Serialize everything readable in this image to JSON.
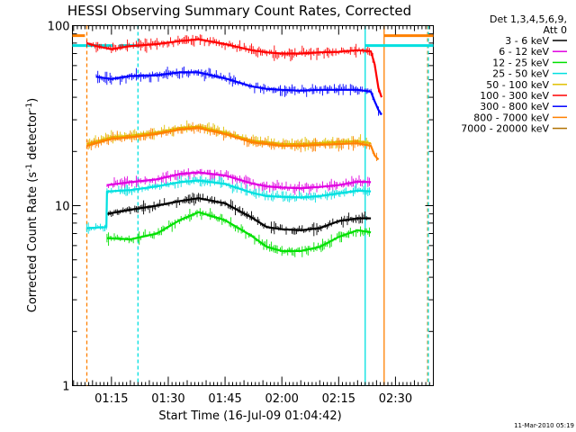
{
  "chart_data": {
    "type": "line",
    "title": "HESSI Observing Summary Count Rates, Corrected",
    "xlabel": "Start Time (16-Jul-09 01:04:42)",
    "ylabel_parts": [
      "Corrected Count Rate (s",
      "-1",
      " detector",
      "-1",
      ")"
    ],
    "y_scale": "log",
    "ylim": [
      1,
      100
    ],
    "y_ticks": [
      {
        "v": 1,
        "label": "1"
      },
      {
        "v": 10,
        "label": "10"
      },
      {
        "v": 100,
        "label": "100"
      }
    ],
    "xlim": [
      "01:04:42",
      "02:40:00"
    ],
    "x_ticks": [
      "01:15",
      "01:30",
      "01:45",
      "02:00",
      "02:15",
      "02:30"
    ],
    "legend_header": [
      "Det 1,3,4,5,6,9,",
      "Att 0"
    ],
    "legend_position": "right",
    "series": [
      {
        "name": "3 - 6 keV",
        "color": "#000000",
        "data": [
          [
            "01:13:50",
            9.0
          ],
          [
            "01:20",
            9.5
          ],
          [
            "01:27",
            10.0
          ],
          [
            "01:33",
            10.6
          ],
          [
            "01:38",
            11.0
          ],
          [
            "01:45",
            10.3
          ],
          [
            "01:52",
            8.6
          ],
          [
            "01:56",
            7.6
          ],
          [
            "02:00",
            7.4
          ],
          [
            "02:05",
            7.3
          ],
          [
            "02:10",
            7.5
          ],
          [
            "02:15",
            8.2
          ],
          [
            "02:20",
            8.5
          ],
          [
            "02:23:30",
            8.5
          ]
        ]
      },
      {
        "name": "6 - 12 keV",
        "color": "#e000e0",
        "data": [
          [
            "01:13:50",
            13.0
          ],
          [
            "01:20",
            13.5
          ],
          [
            "01:27",
            14.0
          ],
          [
            "01:33",
            15.0
          ],
          [
            "01:38",
            15.3
          ],
          [
            "01:45",
            14.7
          ],
          [
            "01:52",
            13.3
          ],
          [
            "01:56",
            12.8
          ],
          [
            "02:00",
            12.6
          ],
          [
            "02:05",
            12.5
          ],
          [
            "02:10",
            12.7
          ],
          [
            "02:15",
            13.0
          ],
          [
            "02:20",
            13.6
          ],
          [
            "02:23:30",
            13.5
          ]
        ]
      },
      {
        "name": "12 - 25 keV",
        "color": "#00e000",
        "data": [
          [
            "01:13:50",
            6.6
          ],
          [
            "01:20",
            6.5
          ],
          [
            "01:27",
            7.0
          ],
          [
            "01:33",
            8.3
          ],
          [
            "01:38",
            9.2
          ],
          [
            "01:45",
            8.3
          ],
          [
            "01:52",
            6.8
          ],
          [
            "01:56",
            5.9
          ],
          [
            "02:00",
            5.6
          ],
          [
            "02:05",
            5.6
          ],
          [
            "02:10",
            5.9
          ],
          [
            "02:15",
            6.7
          ],
          [
            "02:20",
            7.3
          ],
          [
            "02:23:30",
            7.1
          ]
        ]
      },
      {
        "name": "25 - 50 keV",
        "color": "#00e0e0",
        "data": [
          [
            "01:08:30",
            7.5
          ],
          [
            "01:13:40",
            7.6
          ],
          [
            "01:13:50",
            12.0
          ],
          [
            "01:20",
            12.2
          ],
          [
            "01:27",
            12.8
          ],
          [
            "01:33",
            13.5
          ],
          [
            "01:38",
            13.8
          ],
          [
            "01:45",
            13.2
          ],
          [
            "01:52",
            11.8
          ],
          [
            "01:56",
            11.3
          ],
          [
            "02:00",
            11.2
          ],
          [
            "02:05",
            11.1
          ],
          [
            "02:10",
            11.3
          ],
          [
            "02:15",
            11.7
          ],
          [
            "02:20",
            12.1
          ],
          [
            "02:23:30",
            12.0
          ]
        ]
      },
      {
        "name": "50 - 100 keV",
        "color": "#e0c000",
        "data": [
          [
            "01:08:30",
            22.0
          ],
          [
            "01:15",
            24.0
          ],
          [
            "01:20",
            24.5
          ],
          [
            "01:27",
            25.5
          ],
          [
            "01:33",
            27.0
          ],
          [
            "01:38",
            27.5
          ],
          [
            "01:45",
            25.5
          ],
          [
            "01:52",
            23.0
          ],
          [
            "01:56",
            22.5
          ],
          [
            "02:00",
            22.0
          ],
          [
            "02:05",
            22.0
          ],
          [
            "02:10",
            22.3
          ],
          [
            "02:15",
            22.6
          ],
          [
            "02:20",
            22.8
          ],
          [
            "02:23:30",
            22.2
          ]
        ]
      },
      {
        "name": "100 - 300 keV",
        "color": "#ff0000",
        "data": [
          [
            "01:08:30",
            80.0
          ],
          [
            "01:11",
            77.0
          ],
          [
            "01:15",
            74.0
          ],
          [
            "01:20",
            77.0
          ],
          [
            "01:27",
            79.0
          ],
          [
            "01:33",
            82.0
          ],
          [
            "01:38",
            84.0
          ],
          [
            "01:45",
            79.0
          ],
          [
            "01:52",
            73.0
          ],
          [
            "01:56",
            71.0
          ],
          [
            "02:00",
            70.0
          ],
          [
            "02:05",
            70.0
          ],
          [
            "02:10",
            71.0
          ],
          [
            "02:15",
            71.5
          ],
          [
            "02:20",
            73.0
          ],
          [
            "02:23:30",
            72.0
          ],
          [
            "02:24:30",
            61.0
          ],
          [
            "02:25:30",
            45.0
          ],
          [
            "02:26:20",
            40.0
          ]
        ]
      },
      {
        "name": "300 - 800 keV",
        "color": "#0000ff",
        "data": [
          [
            "01:11",
            52.0
          ],
          [
            "01:15",
            50.5
          ],
          [
            "01:20",
            52.5
          ],
          [
            "01:27",
            53.0
          ],
          [
            "01:33",
            55.0
          ],
          [
            "01:38",
            55.0
          ],
          [
            "01:45",
            51.0
          ],
          [
            "01:52",
            46.0
          ],
          [
            "01:56",
            44.5
          ],
          [
            "02:00",
            44.0
          ],
          [
            "02:05",
            43.5
          ],
          [
            "02:10",
            44.0
          ],
          [
            "02:15",
            44.0
          ],
          [
            "02:20",
            44.0
          ],
          [
            "02:23:30",
            43.0
          ],
          [
            "02:24:30",
            38.0
          ],
          [
            "02:25:30",
            34.0
          ],
          [
            "02:26:20",
            32.0
          ]
        ]
      },
      {
        "name": "800 - 7000 keV",
        "color": "#ff8000",
        "data": [
          [
            "01:08:30",
            21.5
          ],
          [
            "01:15",
            23.5
          ],
          [
            "01:20",
            24.0
          ],
          [
            "01:27",
            25.0
          ],
          [
            "01:33",
            26.5
          ],
          [
            "01:38",
            27.0
          ],
          [
            "01:45",
            25.0
          ],
          [
            "01:52",
            22.5
          ],
          [
            "01:56",
            22.0
          ],
          [
            "02:00",
            21.5
          ],
          [
            "02:05",
            21.5
          ],
          [
            "02:10",
            21.8
          ],
          [
            "02:15",
            22.0
          ],
          [
            "02:20",
            22.2
          ],
          [
            "02:23:30",
            21.5
          ],
          [
            "02:24:30",
            19.0
          ],
          [
            "02:25:30",
            18.0
          ]
        ]
      },
      {
        "name": "7000 - 20000 keV",
        "color": "#b07000",
        "data": []
      }
    ]
  },
  "footer_timestamp": "11-Mar-2010 05:19"
}
